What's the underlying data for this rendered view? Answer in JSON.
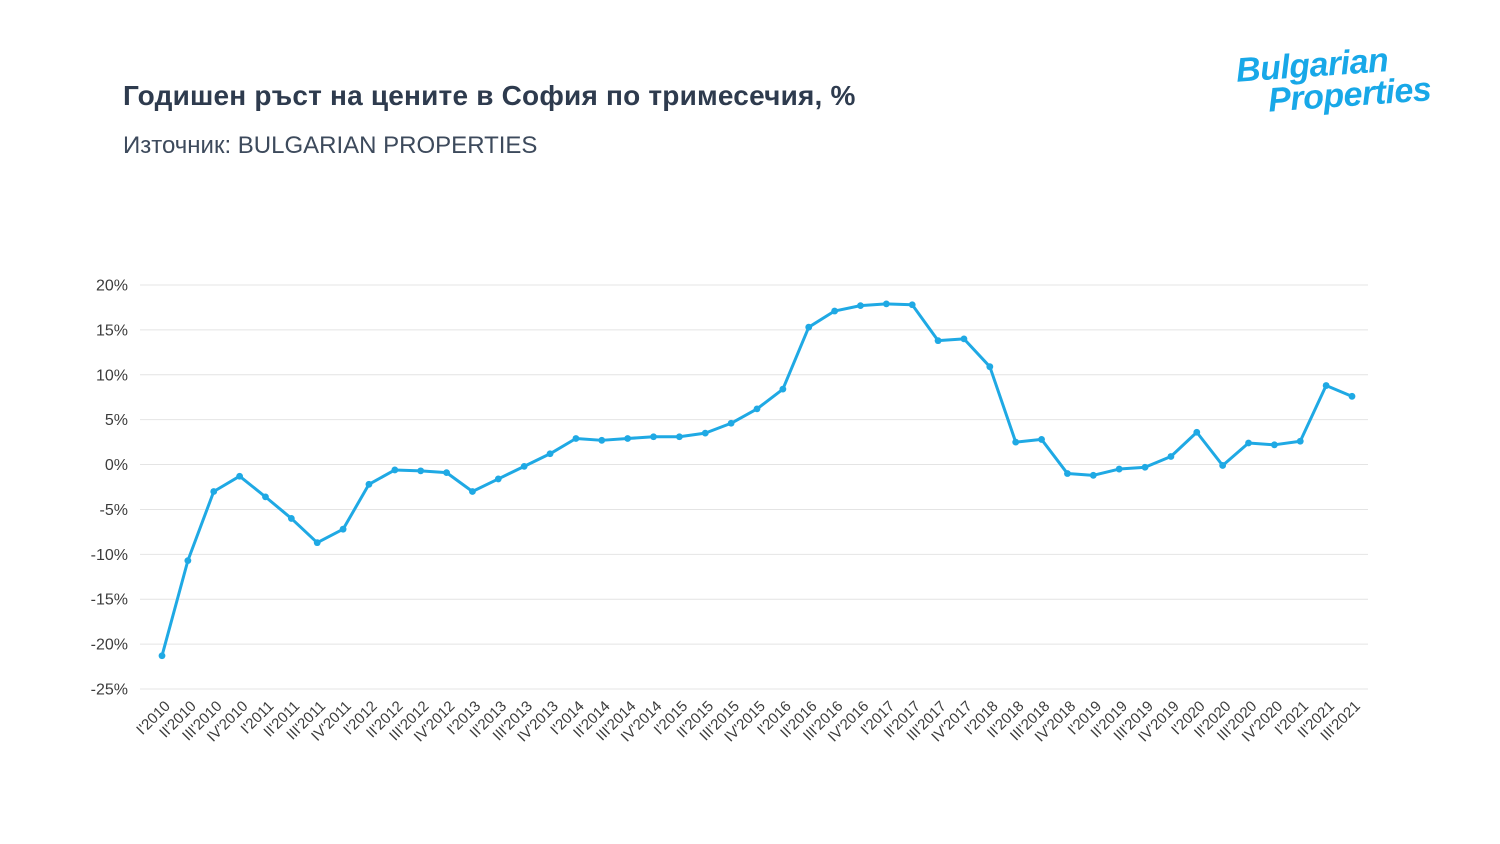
{
  "header": {
    "title": "Годишен ръст на цените в София по тримесечия, %",
    "subtitle": "Източник: BULGARIAN PROPERTIES",
    "logo_line1": "Bulgarian",
    "logo_line2": "Properties"
  },
  "colors": {
    "line": "#1fa9e4",
    "grid": "#e4e4e4",
    "axis_text": "#3c3c3c",
    "title": "#2e3b4e",
    "logo": "#18a8e8"
  },
  "chart_data": {
    "type": "line",
    "title": "Годишен ръст на цените в София по тримесечия, %",
    "source": "Източник: BULGARIAN PROPERTIES",
    "xlabel": "",
    "ylabel": "",
    "ylim": [
      -25,
      20
    ],
    "yticks": [
      20,
      15,
      10,
      5,
      0,
      -5,
      -10,
      -15,
      -20,
      -25
    ],
    "ytick_suffix": "%",
    "grid": true,
    "legend": "none",
    "categories": [
      "I'2010",
      "II'2010",
      "III'2010",
      "IV'2010",
      "I'2011",
      "II'2011",
      "III'2011",
      "IV'2011",
      "I'2012",
      "II'2012",
      "III'2012",
      "IV'2012",
      "I'2013",
      "II'2013",
      "III'2013",
      "IV'2013",
      "I'2014",
      "II'2014",
      "III'2014",
      "IV'2014",
      "I'2015",
      "II'2015",
      "III'2015",
      "IV'2015",
      "I'2016",
      "II'2016",
      "III'2016",
      "IV'2016",
      "I'2017",
      "II'2017",
      "III'2017",
      "IV'2017",
      "I'2018",
      "II'2018",
      "III'2018",
      "IV'2018",
      "I'2019",
      "II'2019",
      "III'2019",
      "IV'2019",
      "I'2020",
      "II'2020",
      "III'2020",
      "IV'2020",
      "I'2021",
      "II'2021",
      "III'2021"
    ],
    "values": [
      -21.3,
      -10.7,
      -3.0,
      -1.3,
      -3.6,
      -6.0,
      -8.7,
      -7.2,
      -2.2,
      -0.6,
      -0.7,
      -0.9,
      -3.0,
      -1.6,
      -0.2,
      1.2,
      2.9,
      2.7,
      2.9,
      3.1,
      3.1,
      3.5,
      4.6,
      6.2,
      8.4,
      15.3,
      17.1,
      17.7,
      17.9,
      17.8,
      13.8,
      14.0,
      10.9,
      2.5,
      2.8,
      -1.0,
      -1.2,
      -0.5,
      -0.3,
      0.9,
      3.6,
      -0.1,
      2.4,
      2.2,
      2.6,
      8.8,
      7.6
    ]
  }
}
